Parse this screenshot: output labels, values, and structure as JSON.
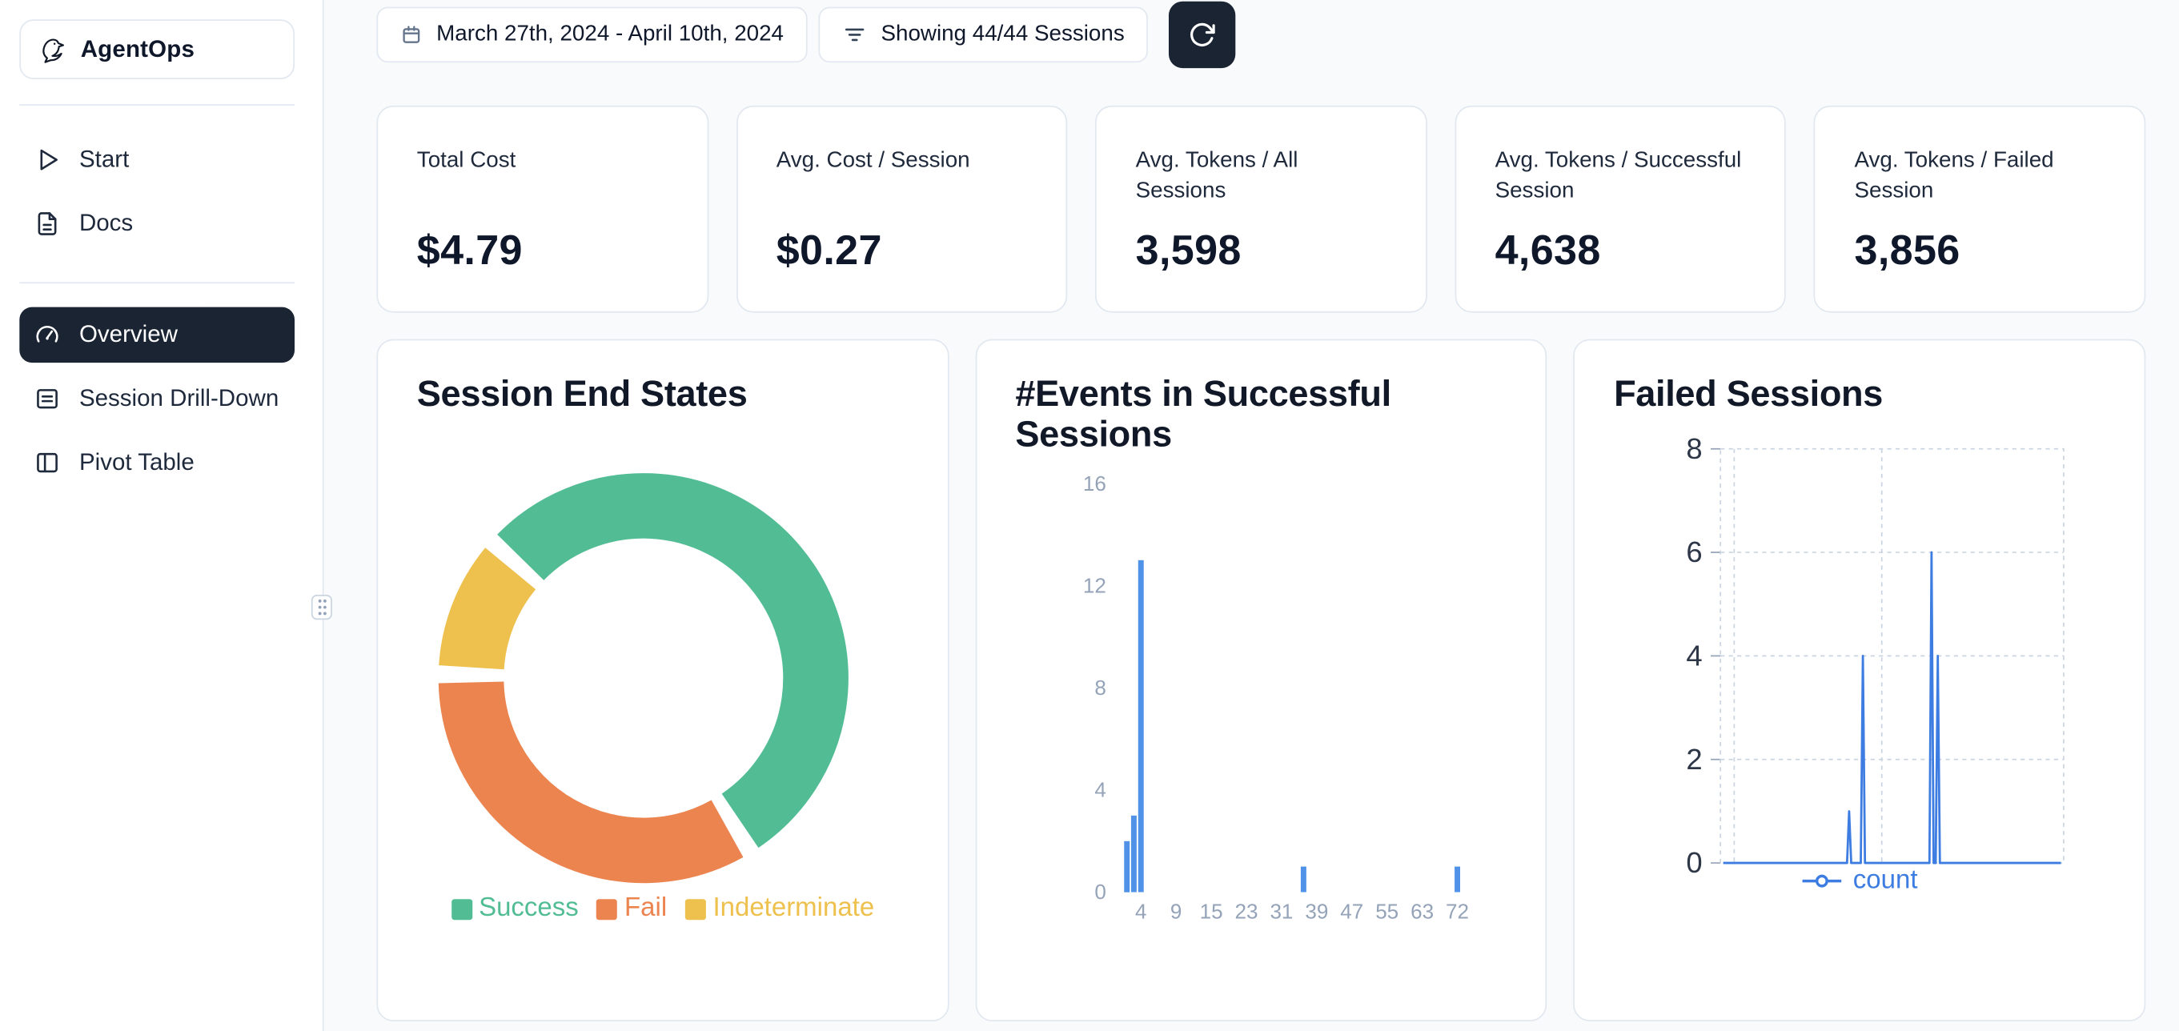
{
  "app": {
    "name": "AgentOps",
    "logo_icon": "bird-logo-icon"
  },
  "theme": {
    "page_bg": "#f8fafc",
    "card_border": "#e2e8f0",
    "sidebar_active_bg": "#1a2433",
    "refresh_button_bg": "#1a2433",
    "accent_blue": "#3d7ce0"
  },
  "sidebar": {
    "top_items": [
      {
        "label": "Start",
        "icon": "play-icon"
      },
      {
        "label": "Docs",
        "icon": "docs-icon"
      }
    ],
    "main_items": [
      {
        "label": "Overview",
        "icon": "gauge-icon",
        "active": true
      },
      {
        "label": "Session Drill-Down",
        "icon": "sessions-icon",
        "active": false
      },
      {
        "label": "Pivot Table",
        "icon": "pivot-icon",
        "active": false
      }
    ]
  },
  "toolbar": {
    "date_range": "March 27th, 2024 - April 10th, 2024",
    "date_icon": "calendar-icon",
    "sessions_filter": "Showing 44/44 Sessions",
    "filter_icon": "filter-icon",
    "refresh_icon": "refresh-icon"
  },
  "stats": [
    {
      "label": "Total Cost",
      "value": "$4.79"
    },
    {
      "label": "Avg. Cost / Session",
      "value": "$0.27"
    },
    {
      "label": "Avg. Tokens / All Sessions",
      "value": "3,598"
    },
    {
      "label": "Avg. Tokens / Successful Session",
      "value": "4,638"
    },
    {
      "label": "Avg. Tokens / Failed Session",
      "value": "3,856"
    }
  ],
  "chart_data": [
    {
      "type": "pie",
      "donut": true,
      "title": "Session End States",
      "labels": [
        "Success",
        "Fail",
        "Indeterminate"
      ],
      "values": [
        24,
        15,
        5
      ],
      "colors": [
        "#52bd95",
        "#ec8450",
        "#eec04d"
      ],
      "start_angle_deg": 312,
      "legend_position": "bottom"
    },
    {
      "type": "bar",
      "title": "#Events in Successful Sessions",
      "x_ticks": [
        4,
        9,
        15,
        23,
        31,
        39,
        47,
        55,
        63,
        72
      ],
      "y_ticks": [
        0,
        4,
        8,
        12,
        16
      ],
      "ylim": [
        0,
        16
      ],
      "bars": [
        {
          "x": 2,
          "count": 2
        },
        {
          "x": 3,
          "count": 3
        },
        {
          "x": 4,
          "count": 13
        },
        {
          "x": 36,
          "count": 1
        },
        {
          "x": 72,
          "count": 1
        }
      ],
      "bar_color": "#4f92e8",
      "grid": false
    },
    {
      "type": "line",
      "title": "Failed Sessions",
      "y_ticks": [
        0,
        2,
        4,
        6,
        8
      ],
      "ylim": [
        0,
        8
      ],
      "grid": "dashed",
      "legend_position": "bottom",
      "series": [
        {
          "name": "count",
          "color": "#3d7ce0",
          "spikes": [
            {
              "pos": 0.375,
              "value": 1
            },
            {
              "pos": 0.415,
              "value": 4
            },
            {
              "pos": 0.615,
              "value": 6
            },
            {
              "pos": 0.633,
              "value": 4
            }
          ]
        }
      ]
    }
  ]
}
